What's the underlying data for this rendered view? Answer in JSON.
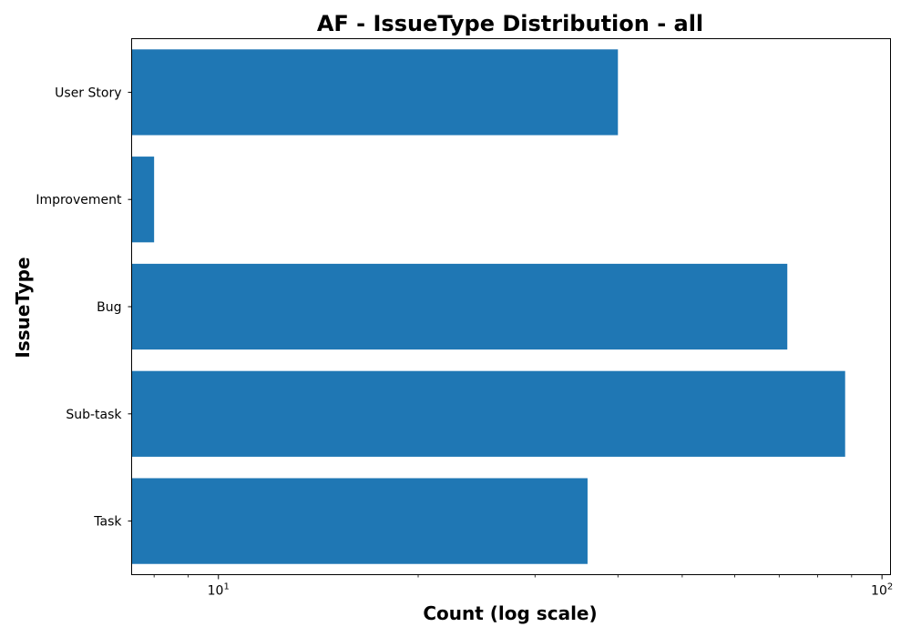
{
  "chart_data": {
    "type": "bar",
    "orientation": "horizontal",
    "title": "AF - IssueType Distribution - all",
    "xlabel": "Count (log scale)",
    "ylabel": "IssueType",
    "x_scale": "log",
    "xlim": [
      7.4,
      103
    ],
    "x_major_ticks": [
      {
        "value": 10,
        "base": "10",
        "exp": "1"
      },
      {
        "value": 100,
        "base": "10",
        "exp": "2"
      }
    ],
    "categories": [
      "Task",
      "Sub-task",
      "Bug",
      "Improvement",
      "User Story"
    ],
    "values": [
      36,
      88,
      72,
      8,
      40
    ],
    "bar_color": "#1f77b4",
    "grid": false,
    "legend": false
  }
}
